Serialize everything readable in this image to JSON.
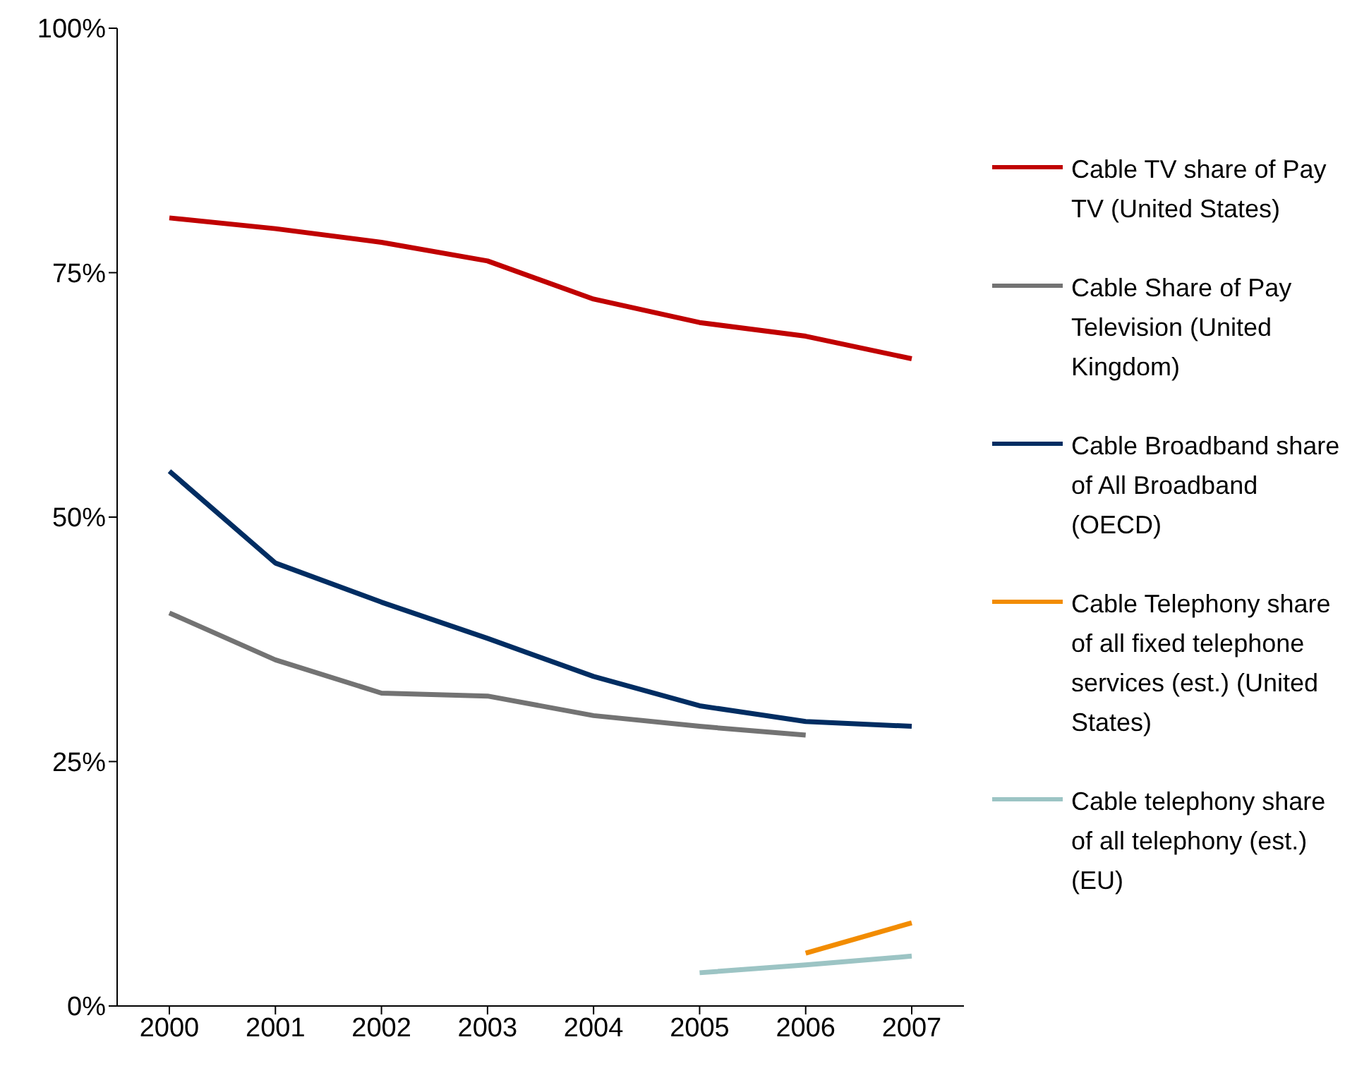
{
  "chart_data": {
    "type": "line",
    "categories": [
      "2000",
      "2001",
      "2002",
      "2003",
      "2004",
      "2005",
      "2006",
      "2007"
    ],
    "series": [
      {
        "name": "Cable TV share of Pay TV (United States)",
        "color": "#c00000",
        "values": [
          80.6,
          79.5,
          78.1,
          76.2,
          72.3,
          69.9,
          68.5,
          66.2
        ]
      },
      {
        "name": "Cable Share of Pay Television (United Kingdom)",
        "color": "#737373",
        "values": [
          40.2,
          35.4,
          32.0,
          31.7,
          29.7,
          28.6,
          27.7,
          null
        ]
      },
      {
        "name": "Cable Broadband share of All Broadband (OECD)",
        "color": "#002d62",
        "values": [
          54.7,
          45.3,
          41.3,
          37.6,
          33.7,
          30.7,
          29.1,
          28.6
        ]
      },
      {
        "name": "Cable Telephony share of all fixed telephone services (est.) (United States)",
        "color": "#f28c00",
        "values": [
          null,
          null,
          null,
          null,
          null,
          null,
          5.4,
          8.5
        ]
      },
      {
        "name": "Cable telephony share of all telephony (est.) (EU)",
        "color": "#9cc4c4",
        "values": [
          null,
          null,
          null,
          null,
          null,
          3.4,
          4.2,
          5.1
        ]
      }
    ],
    "ylim": [
      0,
      100
    ],
    "yticks": [
      {
        "value": 0,
        "label": "0%"
      },
      {
        "value": 25,
        "label": "25%"
      },
      {
        "value": 50,
        "label": "50%"
      },
      {
        "value": 75,
        "label": "75%"
      },
      {
        "value": 100,
        "label": "100%"
      }
    ],
    "grid": false,
    "legend": "right",
    "marker": "none",
    "line_style": "solid"
  }
}
